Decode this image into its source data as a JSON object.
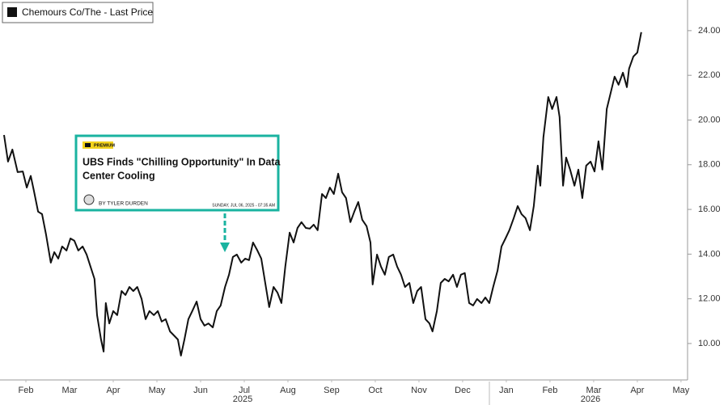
{
  "chart_data": {
    "type": "line",
    "series": [
      {
        "name": "Chemours Co/The - Last Price",
        "color": "#111111",
        "x": [
          1.0,
          1.09,
          1.19,
          1.31,
          1.43,
          1.52,
          1.61,
          1.68,
          1.78,
          1.87,
          1.96,
          2.07,
          2.15,
          2.24,
          2.33,
          2.43,
          2.52,
          2.61,
          2.7,
          2.8,
          2.89,
          2.98,
          3.07,
          3.13,
          3.22,
          3.28,
          3.33,
          3.41,
          3.5,
          3.59,
          3.69,
          3.78,
          3.87,
          3.96,
          4.05,
          4.15,
          4.24,
          4.33,
          4.43,
          4.52,
          4.61,
          4.7,
          4.8,
          4.89,
          4.98,
          5.05,
          5.13,
          5.22,
          5.31,
          5.41,
          5.5,
          5.59,
          5.68,
          5.78,
          5.87,
          5.96,
          6.06,
          6.15,
          6.24,
          6.33,
          6.43,
          6.52,
          6.61,
          6.7,
          6.8,
          6.89,
          6.98,
          7.07,
          7.17,
          7.26,
          7.35,
          7.44,
          7.54,
          7.63,
          7.72,
          7.81,
          7.91,
          8.0,
          8.09,
          8.18,
          8.28,
          8.37,
          8.46,
          8.55,
          8.65,
          8.74,
          8.83,
          8.93,
          9.02,
          9.11,
          9.2,
          9.3,
          9.39,
          9.44,
          9.54,
          9.63,
          9.72,
          9.81,
          9.91,
          10.0,
          10.09,
          10.18,
          10.28,
          10.37,
          10.46,
          10.55,
          10.65,
          10.74,
          10.81,
          10.91,
          11.0,
          11.09,
          11.18,
          11.28,
          11.37,
          11.46,
          11.55,
          11.65,
          11.74,
          11.83,
          11.93,
          12.02,
          12.11,
          12.2,
          12.3,
          12.39,
          12.48,
          12.57,
          12.67,
          12.76,
          12.85,
          12.94,
          13.04,
          13.13,
          13.22,
          13.28,
          13.35,
          13.46,
          13.55,
          13.65,
          13.72,
          13.8,
          13.87,
          13.96,
          14.06,
          14.15,
          14.24,
          14.33,
          14.43,
          14.52,
          14.61,
          14.7,
          14.8,
          14.89,
          14.98,
          15.07,
          15.17,
          15.26,
          15.31,
          15.41,
          15.5,
          15.59
        ],
        "values": [
          19.33,
          18.14,
          18.68,
          17.67,
          17.7,
          16.98,
          17.5,
          16.87,
          15.9,
          15.79,
          14.88,
          13.62,
          14.09,
          13.8,
          14.34,
          14.16,
          14.7,
          14.6,
          14.16,
          14.34,
          13.98,
          13.44,
          12.89,
          11.27,
          10.18,
          9.64,
          11.81,
          10.9,
          11.45,
          11.27,
          12.35,
          12.17,
          12.53,
          12.35,
          12.53,
          11.99,
          11.09,
          11.45,
          11.27,
          11.45,
          10.98,
          11.09,
          10.54,
          10.36,
          10.18,
          9.46,
          10.18,
          11.09,
          11.45,
          11.88,
          11.09,
          10.8,
          10.9,
          10.72,
          11.45,
          11.7,
          12.53,
          13.08,
          13.87,
          13.98,
          13.62,
          13.8,
          13.73,
          14.52,
          14.16,
          13.8,
          12.71,
          11.63,
          12.53,
          12.28,
          11.81,
          13.44,
          14.96,
          14.52,
          15.17,
          15.43,
          15.17,
          15.14,
          15.32,
          15.07,
          16.69,
          16.51,
          16.98,
          16.69,
          17.6,
          16.77,
          16.51,
          15.43,
          15.9,
          16.33,
          15.54,
          15.25,
          14.52,
          12.64,
          13.98,
          13.44,
          13.08,
          13.87,
          13.98,
          13.44,
          13.08,
          12.53,
          12.71,
          11.81,
          12.35,
          12.53,
          11.09,
          10.9,
          10.54,
          11.45,
          12.71,
          12.89,
          12.78,
          13.08,
          12.53,
          13.08,
          13.15,
          11.81,
          11.7,
          11.99,
          11.81,
          12.06,
          11.81,
          12.53,
          13.26,
          14.34,
          14.7,
          15.07,
          15.61,
          16.15,
          15.79,
          15.61,
          15.07,
          16.15,
          17.96,
          17.06,
          19.23,
          21.03,
          20.49,
          21.03,
          20.13,
          17.06,
          18.32,
          17.78,
          17.06,
          17.78,
          16.51,
          17.96,
          18.14,
          17.7,
          19.05,
          17.78,
          20.49,
          21.22,
          21.94,
          21.58,
          22.12,
          21.47,
          22.3,
          22.84,
          23.02,
          23.93
        ]
      }
    ],
    "xlim": [
      0.907,
      16.65
    ],
    "xticks": [
      {
        "value": 1.5,
        "label": "Feb"
      },
      {
        "value": 2.5,
        "label": "Mar"
      },
      {
        "value": 3.5,
        "label": "Apr"
      },
      {
        "value": 4.5,
        "label": "May"
      },
      {
        "value": 5.5,
        "label": "Jun"
      },
      {
        "value": 6.5,
        "label": "Jul"
      },
      {
        "value": 7.5,
        "label": "Aug"
      },
      {
        "value": 8.5,
        "label": "Sep"
      },
      {
        "value": 9.5,
        "label": "Oct"
      },
      {
        "value": 10.5,
        "label": "Nov"
      },
      {
        "value": 11.5,
        "label": "Dec"
      },
      {
        "value": 12.5,
        "label": "Jan"
      },
      {
        "value": 13.5,
        "label": "Feb"
      },
      {
        "value": 14.5,
        "label": "Mar"
      },
      {
        "value": 15.5,
        "label": "Apr"
      },
      {
        "value": 16.5,
        "label": "May"
      }
    ],
    "years": [
      "2025",
      "2026"
    ],
    "ylim": [
      8.37,
      25.37
    ],
    "yticks": [
      {
        "value": 10,
        "label": "10.00"
      },
      {
        "value": 12,
        "label": "12.00"
      },
      {
        "value": 14,
        "label": "14.00"
      },
      {
        "value": 16,
        "label": "16.00"
      },
      {
        "value": 18,
        "label": "18.00"
      },
      {
        "value": 20,
        "label": "20.00"
      },
      {
        "value": 22,
        "label": "22.00"
      },
      {
        "value": 24,
        "label": "24.00"
      }
    ],
    "annotation": {
      "tag": "PREMIUM",
      "headline_lines": [
        "UBS Finds \"Chilling Opportunity\" In Data",
        "Center Cooling"
      ],
      "author": "BY TYLER DURDEN",
      "date": "SUNDAY, JUL 06, 2025 - 07:35 AM",
      "color": "#1ab3a0"
    }
  }
}
